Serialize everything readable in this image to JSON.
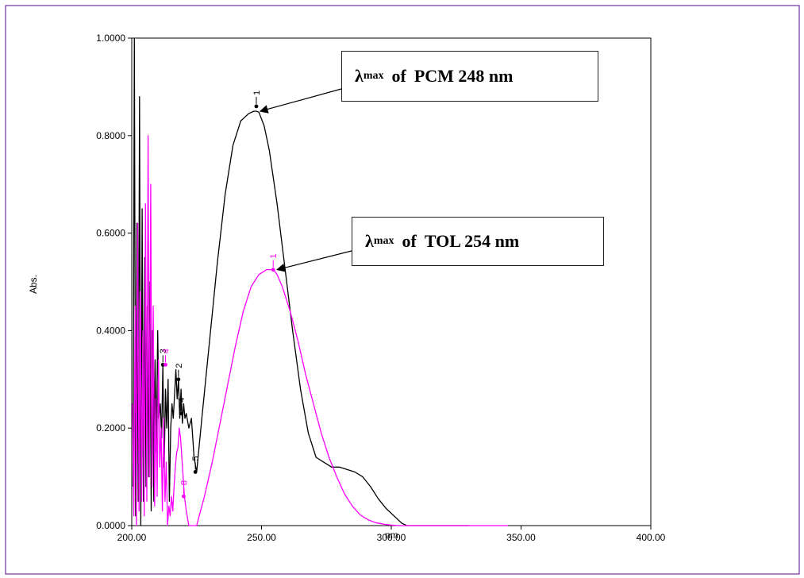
{
  "chart_data": {
    "type": "line",
    "xlabel": "nm.",
    "ylabel": "Abs.",
    "xlim": [
      200,
      400
    ],
    "ylim": [
      0,
      1
    ],
    "x_ticks": [
      "200.00",
      "250.00",
      "300.00",
      "350.00",
      "400.00"
    ],
    "y_ticks": [
      "0.0000",
      "0.2000",
      "0.4000",
      "0.6000",
      "0.8000",
      "1.0000"
    ],
    "grid": false,
    "colors": {
      "frame": "#7030a0",
      "series_pcm": "#000000",
      "series_tol": "#ff00ff"
    },
    "series": [
      {
        "color": "#000000",
        "x": [
          200.5,
          201.0,
          201.5,
          202.0,
          202.5,
          203.0,
          203.5,
          204.0,
          204.5,
          205.0,
          205.5,
          206.0,
          206.5,
          207.0,
          207.5,
          208.0,
          208.5,
          209.0,
          209.5,
          210.0,
          210.5,
          211.0,
          211.5,
          212.0,
          212.5,
          213.0,
          213.5,
          214.0,
          214.5,
          215.0,
          215.5,
          216.0,
          216.5,
          217.0,
          217.5,
          218.0,
          218.5,
          219.0,
          219.5,
          220.0,
          220.5,
          221.0,
          222.0,
          223.0,
          224.0,
          225.0,
          227.0,
          230.0,
          233.0,
          236.0,
          239.0,
          242.0,
          245.0,
          247.0,
          248.0,
          249.0,
          251.0,
          253.0,
          256.0,
          259.0,
          262.0,
          265.0,
          268.0,
          271.0,
          274.0,
          277.0,
          280.0,
          283.0,
          286.0,
          289.0,
          292.0,
          295.0,
          298.0,
          301.0,
          304.0,
          306.0,
          307.0,
          310.0,
          330.0
        ],
        "y": [
          0.08,
          1.0,
          0.02,
          0.62,
          0.05,
          0.88,
          0.0,
          0.65,
          0.05,
          0.55,
          0.08,
          0.45,
          0.1,
          0.5,
          0.03,
          0.4,
          0.05,
          0.34,
          0.15,
          0.4,
          0.22,
          0.25,
          0.18,
          0.33,
          0.12,
          0.28,
          0.2,
          0.3,
          0.05,
          0.2,
          0.25,
          0.22,
          0.27,
          0.32,
          0.26,
          0.3,
          0.22,
          0.28,
          0.21,
          0.25,
          0.22,
          0.23,
          0.2,
          0.22,
          0.14,
          0.11,
          0.22,
          0.38,
          0.54,
          0.68,
          0.78,
          0.83,
          0.845,
          0.85,
          0.85,
          0.848,
          0.82,
          0.77,
          0.66,
          0.53,
          0.4,
          0.28,
          0.19,
          0.14,
          0.13,
          0.12,
          0.12,
          0.115,
          0.11,
          0.1,
          0.08,
          0.055,
          0.035,
          0.02,
          0.005,
          0.0,
          0.0,
          0.0,
          0.0
        ]
      },
      {
        "color": "#ff00ff",
        "x": [
          200.3,
          200.8,
          201.3,
          201.8,
          202.3,
          202.8,
          203.3,
          203.8,
          204.3,
          204.8,
          205.3,
          205.8,
          206.3,
          206.8,
          207.3,
          207.8,
          208.3,
          208.8,
          209.3,
          209.8,
          210.3,
          210.8,
          211.3,
          211.8,
          212.3,
          212.8,
          213.3,
          213.8,
          214.3,
          214.8,
          215.3,
          215.8,
          216.3,
          216.8,
          217.3,
          217.8,
          218.3,
          218.8,
          219.3,
          219.8,
          220.3,
          221.0,
          222.0,
          223.0,
          224.0,
          224.5,
          225.0,
          226.0,
          228.0,
          231.0,
          234.0,
          237.0,
          240.0,
          243.0,
          246.0,
          249.0,
          252.0,
          254.0,
          255.0,
          256.0,
          258.0,
          261.0,
          264.0,
          267.0,
          270.0,
          273.0,
          276.0,
          279.0,
          282.0,
          285.0,
          288.0,
          291.0,
          294.0,
          297.0,
          300.0,
          303.0,
          306.0,
          309.0,
          312.0,
          320.0,
          330.0,
          345.0
        ],
        "y": [
          0.25,
          0.02,
          0.45,
          0.0,
          0.62,
          0.03,
          0.48,
          0.05,
          0.4,
          0.02,
          0.66,
          0.05,
          0.8,
          0.1,
          0.7,
          0.08,
          0.45,
          0.04,
          0.26,
          0.06,
          0.34,
          0.12,
          0.2,
          0.03,
          0.22,
          0.05,
          0.13,
          0.0,
          0.04,
          0.02,
          0.06,
          0.03,
          0.08,
          0.12,
          0.15,
          0.16,
          0.2,
          0.18,
          0.14,
          0.1,
          0.06,
          0.03,
          0.0,
          0.0,
          0.0,
          0.0,
          0.0,
          0.02,
          0.06,
          0.13,
          0.21,
          0.29,
          0.37,
          0.44,
          0.49,
          0.515,
          0.525,
          0.525,
          0.522,
          0.515,
          0.49,
          0.44,
          0.38,
          0.31,
          0.25,
          0.19,
          0.14,
          0.1,
          0.065,
          0.04,
          0.022,
          0.012,
          0.006,
          0.003,
          0.001,
          0.0,
          0.0,
          0.0,
          0.0,
          0.0,
          0.0,
          0.0
        ]
      }
    ],
    "peak_markers": [
      {
        "label": "1",
        "x": 248,
        "y": 0.86,
        "color": "#000000"
      },
      {
        "label": "2",
        "x": 218,
        "y": 0.3,
        "color": "#000000"
      },
      {
        "label": "3",
        "x": 212,
        "y": 0.33,
        "color": "#000000"
      },
      {
        "label": "4",
        "x": 219,
        "y": 0.23,
        "color": "#000000"
      },
      {
        "label": "5",
        "x": 224.5,
        "y": 0.11,
        "color": "#000000"
      },
      {
        "label": "1",
        "x": 254.5,
        "y": 0.525,
        "color": "#ff00ff"
      },
      {
        "label": "4",
        "x": 213,
        "y": 0.33,
        "color": "#ff00ff"
      },
      {
        "label": "8",
        "x": 220,
        "y": 0.06,
        "color": "#ff00ff"
      }
    ],
    "annotations": [
      {
        "id": "pcm",
        "symbol": "λ",
        "subscript": "max",
        "pre": "of",
        "text": "PCM 248 nm",
        "target_x": 249.5,
        "target_y": 0.85
      },
      {
        "id": "tol",
        "symbol": "λ",
        "subscript": "max",
        "pre": "of",
        "text": "TOL 254 nm",
        "target_x": 256,
        "target_y": 0.525
      }
    ]
  }
}
